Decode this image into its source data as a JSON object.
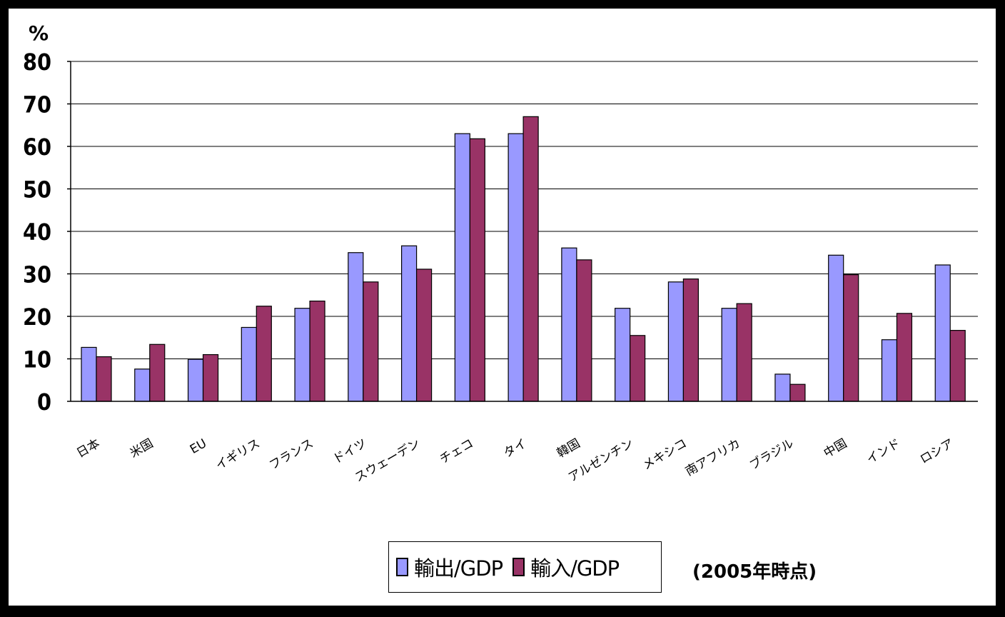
{
  "chart_data": {
    "type": "bar",
    "unit_label": "%",
    "note": "(2005年時点)",
    "ylim": [
      0,
      80
    ],
    "yticks": [
      0,
      10,
      20,
      30,
      40,
      50,
      60,
      70,
      80
    ],
    "grid": true,
    "categories": [
      "日本",
      "米国",
      "EU",
      "イギリス",
      "フランス",
      "ドイツ",
      "スウェーデン",
      "チェコ",
      "タイ",
      "韓国",
      "アルゼンチン",
      "メキシコ",
      "南アフリカ",
      "ブラジル",
      "中国",
      "インド",
      "ロシア"
    ],
    "series": [
      {
        "name": "輸出/GDP",
        "color": "#9999ff",
        "values": [
          12.7,
          7.6,
          9.9,
          17.4,
          21.9,
          35.0,
          36.6,
          63.0,
          63.0,
          36.1,
          21.9,
          28.1,
          21.9,
          6.4,
          34.4,
          14.5,
          32.1
        ]
      },
      {
        "name": "輸入/GDP",
        "color": "#993366",
        "values": [
          10.5,
          13.4,
          11.0,
          22.4,
          23.6,
          28.1,
          31.1,
          61.8,
          67.0,
          33.3,
          15.5,
          28.8,
          23.0,
          4.0,
          29.8,
          20.7,
          16.7
        ]
      }
    ]
  }
}
